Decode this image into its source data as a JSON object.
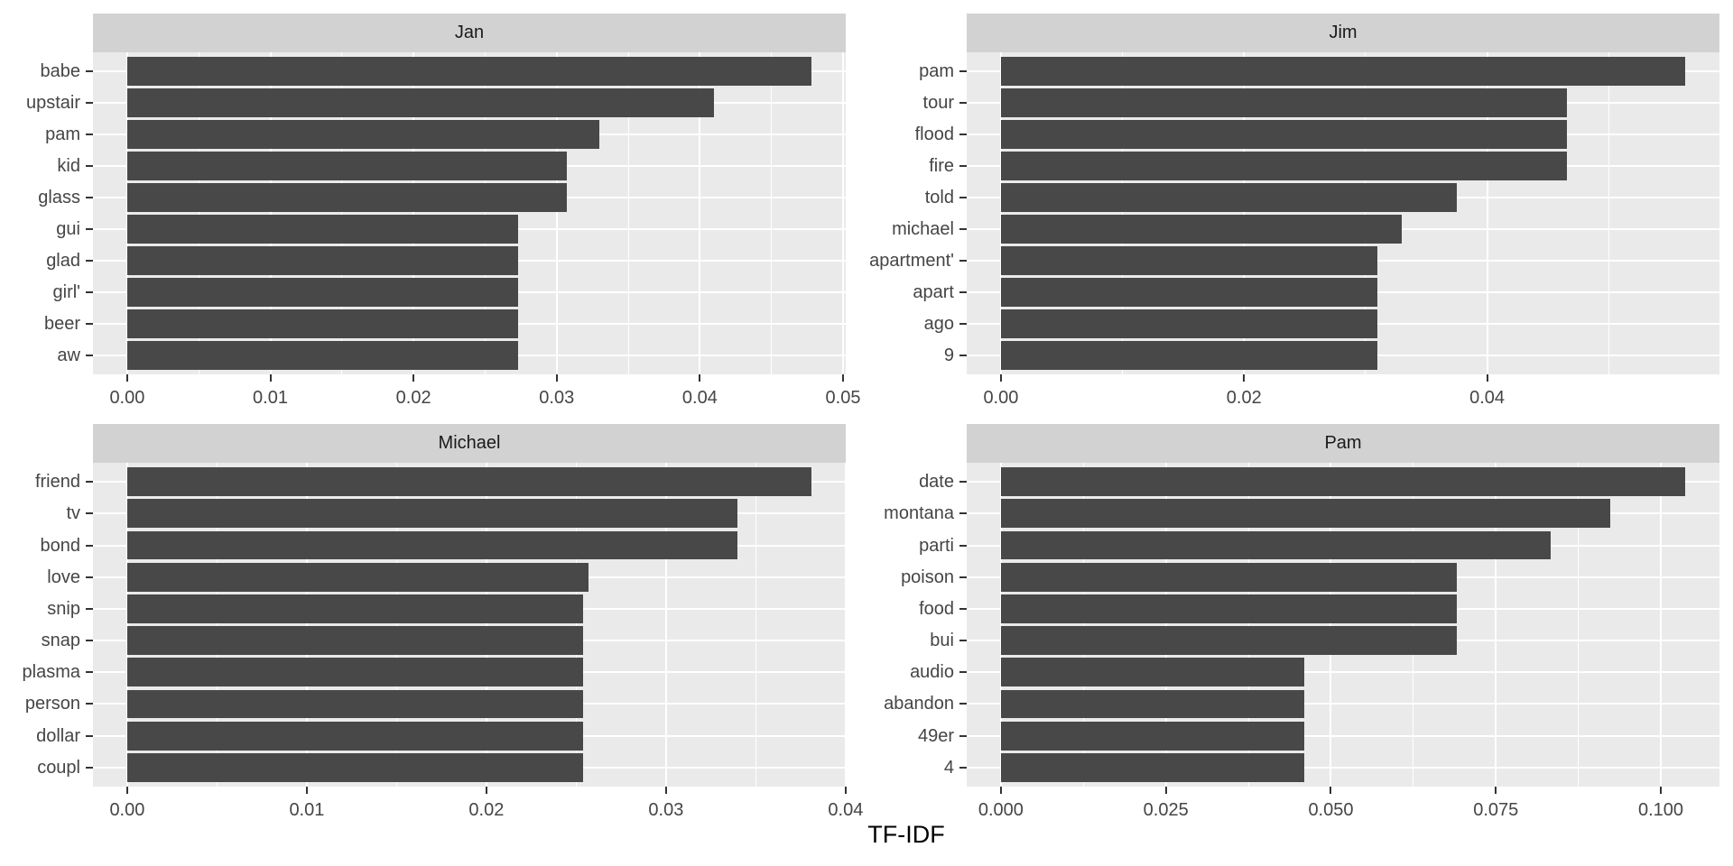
{
  "chart_data": {
    "type": "bar",
    "orientation": "horizontal",
    "title": "",
    "xlabel": "TF-IDF",
    "ylabel": "",
    "grid": true,
    "legend": "none",
    "facets": [
      {
        "title": "Jan",
        "categories": [
          "babe",
          "upstair",
          "pam",
          "kid",
          "glass",
          "gui",
          "glad",
          "girl'",
          "beer",
          "aw"
        ],
        "values": [
          0.0478,
          0.041,
          0.033,
          0.0307,
          0.0307,
          0.0273,
          0.0273,
          0.0273,
          0.0273,
          0.0273
        ],
        "x_ticks": [
          0,
          0.01,
          0.02,
          0.03,
          0.04,
          0.05
        ],
        "x_tick_labels": [
          "0.00",
          "0.01",
          "0.02",
          "0.03",
          "0.04",
          "0.05"
        ],
        "xlim_data": [
          0,
          0.0478
        ]
      },
      {
        "title": "Jim",
        "categories": [
          "pam",
          "tour",
          "flood",
          "fire",
          "told",
          "michael",
          "apartment'",
          "apart",
          "ago",
          "9"
        ],
        "values": [
          0.0563,
          0.0466,
          0.0466,
          0.0466,
          0.0375,
          0.033,
          0.031,
          0.031,
          0.031,
          0.031
        ],
        "x_ticks": [
          0,
          0.02,
          0.04
        ],
        "x_tick_labels": [
          "0.00",
          "0.02",
          "0.04"
        ],
        "xlim_data": [
          0,
          0.0563
        ]
      },
      {
        "title": "Michael",
        "categories": [
          "friend",
          "tv",
          "bond",
          "love",
          "snip",
          "snap",
          "plasma",
          "person",
          "dollar",
          "coupl"
        ],
        "values": [
          0.0381,
          0.034,
          0.034,
          0.0257,
          0.0254,
          0.0254,
          0.0254,
          0.0254,
          0.0254,
          0.0254
        ],
        "x_ticks": [
          0,
          0.01,
          0.02,
          0.03,
          0.04
        ],
        "x_tick_labels": [
          "0.00",
          "0.01",
          "0.02",
          "0.03",
          "0.04"
        ],
        "xlim_data": [
          0,
          0.0381
        ]
      },
      {
        "title": "Pam",
        "categories": [
          "date",
          "montana",
          "parti",
          "poison",
          "food",
          "bui",
          "audio",
          "abandon",
          "49er",
          "4"
        ],
        "values": [
          0.1037,
          0.0924,
          0.0833,
          0.0691,
          0.0691,
          0.0691,
          0.046,
          0.046,
          0.046,
          0.046
        ],
        "x_ticks": [
          0,
          0.025,
          0.05,
          0.075,
          0.1
        ],
        "x_tick_labels": [
          "0.000",
          "0.025",
          "0.050",
          "0.075",
          "0.100"
        ],
        "xlim_data": [
          0,
          0.1037
        ]
      }
    ]
  },
  "colors": {
    "bar": "#484848",
    "panel_background": "#EAEAEA",
    "strip_background": "#D2D2D2",
    "gridline": "#FFFFFF",
    "axis_text": "#454545",
    "strip_text": "#1A1A1A",
    "tick_mark": "#333333",
    "page_background": "#FFFFFF"
  }
}
